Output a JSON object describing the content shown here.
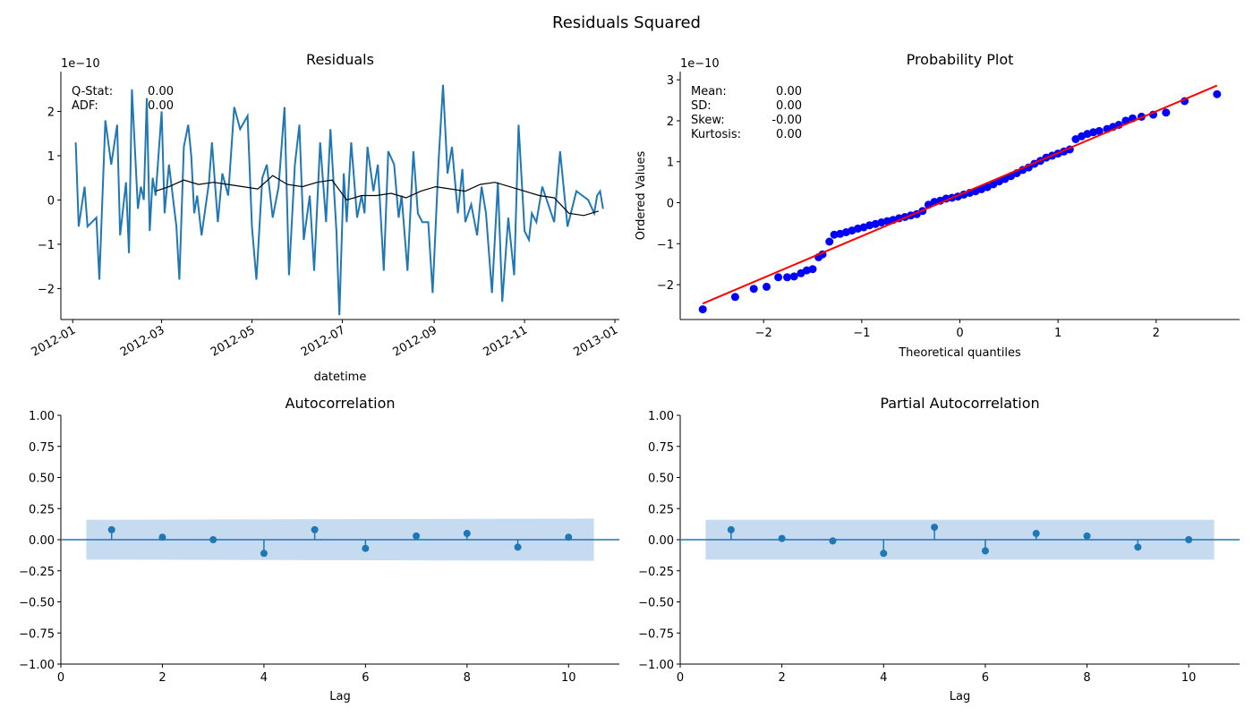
{
  "figure": {
    "suptitle": "Residuals Squared"
  },
  "colors": {
    "series": "#1f77b4",
    "rolling": "#000000",
    "qq_points": "#0000ff",
    "qq_line": "#ff0000",
    "confband": "#c6dbef"
  },
  "chart_data": [
    {
      "id": "residuals",
      "type": "line",
      "title": "Residuals",
      "xlabel": "datetime",
      "ylabel": "",
      "offset_label": "1e−10",
      "x_ticks": [
        "2012-01",
        "2012-03",
        "2012-05",
        "2012-07",
        "2012-09",
        "2012-11",
        "2013-01"
      ],
      "y_ticks": [
        "−2",
        "−1",
        "0",
        "1",
        "2"
      ],
      "xlim": [
        "2011-12-24",
        "2013-01-04"
      ],
      "ylim": [
        -2.7,
        2.9
      ],
      "stats": [
        {
          "label": "Q-Stat:",
          "value": "0.00"
        },
        {
          "label": "ADF:",
          "value": "0.00"
        }
      ],
      "series": [
        {
          "name": "",
          "x": [
            "2012-01-03",
            "2012-01-05",
            "2012-01-09",
            "2012-01-11",
            "2012-01-17",
            "2012-01-19",
            "2012-01-23",
            "2012-01-27",
            "2012-01-31",
            "2012-02-02",
            "2012-02-06",
            "2012-02-08",
            "2012-02-10",
            "2012-02-14",
            "2012-02-16",
            "2012-02-18",
            "2012-02-20",
            "2012-02-22",
            "2012-02-24",
            "2012-02-26",
            "2012-03-01",
            "2012-03-03",
            "2012-03-06",
            "2012-03-11",
            "2012-03-13",
            "2012-03-16",
            "2012-03-19",
            "2012-03-21",
            "2012-03-23",
            "2012-03-25",
            "2012-03-28",
            "2012-04-02",
            "2012-04-04",
            "2012-04-08",
            "2012-04-11",
            "2012-04-15",
            "2012-04-19",
            "2012-04-23",
            "2012-04-28",
            "2012-05-01",
            "2012-05-04",
            "2012-05-08",
            "2012-05-11",
            "2012-05-15",
            "2012-05-19",
            "2012-05-23",
            "2012-05-26",
            "2012-05-30",
            "2012-06-02",
            "2012-06-05",
            "2012-06-09",
            "2012-06-12",
            "2012-06-16",
            "2012-06-20",
            "2012-06-23",
            "2012-06-27",
            "2012-06-29",
            "2012-07-02",
            "2012-07-04",
            "2012-07-07",
            "2012-07-11",
            "2012-07-14",
            "2012-07-16",
            "2012-07-18",
            "2012-07-22",
            "2012-07-25",
            "2012-07-29",
            "2012-08-01",
            "2012-08-05",
            "2012-08-08",
            "2012-08-10",
            "2012-08-14",
            "2012-08-18",
            "2012-08-21",
            "2012-08-24",
            "2012-08-28",
            "2012-08-31",
            "2012-09-04",
            "2012-09-07",
            "2012-09-10",
            "2012-09-13",
            "2012-09-17",
            "2012-09-20",
            "2012-09-22",
            "2012-09-26",
            "2012-09-30",
            "2012-10-03",
            "2012-10-06",
            "2012-10-10",
            "2012-10-14",
            "2012-10-17",
            "2012-10-21",
            "2012-10-25",
            "2012-10-28",
            "2012-11-01",
            "2012-11-04",
            "2012-11-06",
            "2012-11-09",
            "2012-11-13",
            "2012-11-17",
            "2012-11-21",
            "2012-11-25",
            "2012-11-30",
            "2012-12-06",
            "2012-12-10",
            "2012-12-14",
            "2012-12-18",
            "2012-12-20",
            "2012-12-22",
            "2012-12-24"
          ],
          "y": [
            1.3,
            -0.6,
            0.3,
            -0.6,
            -0.4,
            -1.8,
            1.8,
            0.8,
            1.7,
            -0.8,
            0.4,
            -1.2,
            2.5,
            -0.2,
            0.3,
            0.0,
            2.3,
            -0.7,
            0.5,
            0.1,
            2.0,
            -0.3,
            0.8,
            -0.6,
            -1.8,
            1.2,
            1.7,
            1.0,
            -0.3,
            0.1,
            -0.8,
            0.4,
            1.3,
            -0.5,
            0.6,
            0.1,
            2.1,
            1.6,
            1.9,
            -0.6,
            -1.8,
            0.5,
            0.8,
            -0.4,
            0.3,
            2.1,
            -1.7,
            0.8,
            1.7,
            -0.9,
            0.1,
            -1.6,
            1.3,
            -0.5,
            1.6,
            -0.7,
            -2.6,
            0.6,
            -0.5,
            1.3,
            -0.4,
            0.1,
            -0.3,
            1.2,
            0.2,
            0.8,
            -1.6,
            1.1,
            0.8,
            -0.4,
            0.1,
            -1.6,
            1.1,
            -0.3,
            -0.5,
            -0.5,
            -2.1,
            0.9,
            2.6,
            0.6,
            1.2,
            -0.3,
            0.7,
            -0.5,
            -0.1,
            -0.8,
            0.3,
            -0.3,
            -2.1,
            0.4,
            -2.3,
            -0.4,
            -1.7,
            1.7,
            -0.7,
            -0.9,
            -0.3,
            -0.5,
            0.3,
            -0.1,
            -0.5,
            1.1,
            -0.6,
            0.2,
            0.1,
            0.0,
            -0.3,
            0.1,
            0.2,
            -0.2
          ]
        },
        {
          "name": "",
          "x": [
            "2012-02-26",
            "2012-03-06",
            "2012-03-16",
            "2012-03-26",
            "2012-04-05",
            "2012-04-15",
            "2012-04-25",
            "2012-05-05",
            "2012-05-15",
            "2012-05-25",
            "2012-06-04",
            "2012-06-14",
            "2012-06-24",
            "2012-07-04",
            "2012-07-14",
            "2012-07-24",
            "2012-08-03",
            "2012-08-13",
            "2012-08-23",
            "2012-09-02",
            "2012-09-12",
            "2012-09-22",
            "2012-10-02",
            "2012-10-12",
            "2012-10-22",
            "2012-11-01",
            "2012-11-11",
            "2012-11-21",
            "2012-12-01",
            "2012-12-11",
            "2012-12-21"
          ],
          "y": [
            0.2,
            0.3,
            0.45,
            0.35,
            0.4,
            0.35,
            0.3,
            0.25,
            0.55,
            0.35,
            0.3,
            0.4,
            0.45,
            0.0,
            0.1,
            0.1,
            0.15,
            0.05,
            0.2,
            0.3,
            0.25,
            0.2,
            0.35,
            0.4,
            0.3,
            0.2,
            0.1,
            0.05,
            -0.3,
            -0.35,
            -0.25
          ]
        }
      ]
    },
    {
      "id": "probplot",
      "type": "scatter",
      "title": "Probability Plot",
      "xlabel": "Theoretical quantiles",
      "ylabel": "Ordered Values",
      "offset_label": "1e−10",
      "x_ticks": [
        "−2",
        "−1",
        "0",
        "1",
        "2"
      ],
      "y_ticks": [
        "−2",
        "−1",
        "0",
        "1",
        "2",
        "3"
      ],
      "xlim": [
        -2.85,
        2.85
      ],
      "ylim": [
        -2.85,
        3.2
      ],
      "stats": [
        {
          "label": "Mean:",
          "value": "0.00"
        },
        {
          "label": "SD:",
          "value": "0.00"
        },
        {
          "label": "Skew:",
          "value": "-0.00"
        },
        {
          "label": "Kurtosis:",
          "value": "0.00"
        }
      ],
      "fit_line": {
        "x": [
          -2.62,
          2.62
        ],
        "y": [
          -2.46,
          2.86
        ]
      },
      "points": {
        "x": [
          -2.62,
          -2.29,
          -2.1,
          -1.97,
          -1.85,
          -1.76,
          -1.69,
          -1.62,
          -1.56,
          -1.5,
          -1.44,
          -1.4,
          -1.33,
          -1.28,
          -1.22,
          -1.16,
          -1.1,
          -1.04,
          -0.98,
          -0.92,
          -0.86,
          -0.8,
          -0.74,
          -0.68,
          -0.62,
          -0.56,
          -0.5,
          -0.44,
          -0.38,
          -0.32,
          -0.26,
          -0.2,
          -0.14,
          -0.08,
          -0.02,
          0.04,
          0.1,
          0.16,
          0.22,
          0.28,
          0.34,
          0.4,
          0.46,
          0.52,
          0.58,
          0.64,
          0.7,
          0.76,
          0.82,
          0.88,
          0.94,
          1.0,
          1.06,
          1.12,
          1.18,
          1.24,
          1.3,
          1.36,
          1.42,
          1.5,
          1.56,
          1.62,
          1.69,
          1.76,
          1.85,
          1.97,
          2.1,
          2.29,
          2.62
        ],
        "y": [
          -2.6,
          -2.3,
          -2.1,
          -2.05,
          -1.82,
          -1.82,
          -1.8,
          -1.72,
          -1.65,
          -1.62,
          -1.33,
          -1.26,
          -0.95,
          -0.78,
          -0.76,
          -0.72,
          -0.68,
          -0.63,
          -0.6,
          -0.55,
          -0.52,
          -0.48,
          -0.45,
          -0.42,
          -0.38,
          -0.35,
          -0.31,
          -0.28,
          -0.2,
          -0.05,
          0.02,
          0.05,
          0.1,
          0.12,
          0.15,
          0.2,
          0.24,
          0.28,
          0.33,
          0.38,
          0.45,
          0.52,
          0.58,
          0.65,
          0.72,
          0.8,
          0.86,
          0.95,
          1.02,
          1.1,
          1.15,
          1.2,
          1.25,
          1.3,
          1.55,
          1.62,
          1.68,
          1.72,
          1.75,
          1.8,
          1.85,
          1.9,
          2.0,
          2.06,
          2.1,
          2.15,
          2.2,
          2.48,
          2.65
        ]
      }
    },
    {
      "id": "acf",
      "type": "stem",
      "title": "Autocorrelation",
      "xlabel": "Lag",
      "ylabel": "",
      "x_ticks": [
        "0",
        "2",
        "4",
        "6",
        "8",
        "10"
      ],
      "y_ticks": [
        "−1.00",
        "−0.75",
        "−0.50",
        "−0.25",
        "0.00",
        "0.25",
        "0.50",
        "0.75",
        "1.00"
      ],
      "xlim": [
        0,
        11
      ],
      "ylim": [
        -1.0,
        1.0
      ],
      "confint": {
        "x": [
          0.5,
          10.5
        ],
        "lower": [
          -0.16,
          -0.17
        ],
        "upper": [
          0.16,
          0.17
        ]
      },
      "lags": [
        1,
        2,
        3,
        4,
        5,
        6,
        7,
        8,
        9,
        10
      ],
      "values": [
        0.08,
        0.02,
        0.0,
        -0.11,
        0.08,
        -0.07,
        0.03,
        0.05,
        -0.06,
        0.02
      ]
    },
    {
      "id": "pacf",
      "type": "stem",
      "title": "Partial Autocorrelation",
      "xlabel": "Lag",
      "ylabel": "",
      "x_ticks": [
        "0",
        "2",
        "4",
        "6",
        "8",
        "10"
      ],
      "y_ticks": [
        "−1.00",
        "−0.75",
        "−0.50",
        "−0.25",
        "0.00",
        "0.25",
        "0.50",
        "0.75",
        "1.00"
      ],
      "xlim": [
        0,
        11
      ],
      "ylim": [
        -1.0,
        1.0
      ],
      "confint": {
        "x": [
          0.5,
          10.5
        ],
        "lower": [
          -0.16,
          -0.16
        ],
        "upper": [
          0.16,
          0.16
        ]
      },
      "lags": [
        1,
        2,
        3,
        4,
        5,
        6,
        7,
        8,
        9,
        10
      ],
      "values": [
        0.08,
        0.01,
        -0.01,
        -0.11,
        0.1,
        -0.09,
        0.05,
        0.03,
        -0.06,
        0.0
      ]
    }
  ]
}
